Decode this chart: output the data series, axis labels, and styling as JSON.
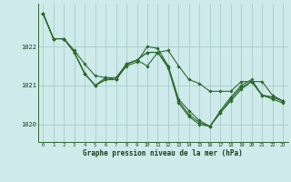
{
  "title": "Graphe pression niveau de la mer (hPa)",
  "background_color": "#ceeaea",
  "plot_bg_color": "#ceeaea",
  "line_color": "#2d6a2d",
  "grid_color": "#aacccc",
  "text_color": "#1a3d1a",
  "xlim": [
    -0.5,
    23.5
  ],
  "ylim": [
    1019.55,
    1023.1
  ],
  "yticks": [
    1020,
    1021,
    1022
  ],
  "xticks": [
    0,
    1,
    2,
    3,
    4,
    5,
    6,
    7,
    8,
    9,
    10,
    11,
    12,
    13,
    14,
    15,
    16,
    17,
    18,
    19,
    20,
    21,
    22,
    23
  ],
  "series": [
    [
      1022.85,
      1022.2,
      1022.2,
      1021.9,
      1021.55,
      1021.25,
      1021.2,
      1021.2,
      1021.55,
      1021.65,
      1021.5,
      1021.85,
      1021.9,
      1021.5,
      1021.15,
      1021.05,
      1020.85,
      1020.85,
      1020.85,
      1021.1,
      1021.1,
      1021.1,
      1020.75,
      1020.6
    ],
    [
      1022.85,
      1022.2,
      1022.2,
      1021.85,
      1021.3,
      1021.0,
      1021.2,
      1021.15,
      1021.5,
      1021.6,
      1022.0,
      1021.95,
      1021.5,
      1020.65,
      1020.35,
      1020.1,
      1019.95,
      1020.35,
      1020.7,
      1021.0,
      1021.15,
      1020.75,
      1020.7,
      1020.6
    ],
    [
      1022.85,
      1022.2,
      1022.2,
      1021.85,
      1021.3,
      1021.0,
      1021.15,
      1021.15,
      1021.55,
      1021.65,
      1021.85,
      1021.85,
      1021.5,
      1020.6,
      1020.25,
      1020.05,
      1019.95,
      1020.3,
      1020.65,
      1020.95,
      1021.1,
      1020.75,
      1020.7,
      1020.6
    ],
    [
      1022.85,
      1022.2,
      1022.2,
      1021.85,
      1021.3,
      1021.0,
      1021.15,
      1021.15,
      1021.55,
      1021.65,
      1021.85,
      1021.85,
      1021.45,
      1020.55,
      1020.2,
      1020.0,
      1019.95,
      1020.3,
      1020.6,
      1020.9,
      1021.1,
      1020.75,
      1020.65,
      1020.55
    ]
  ]
}
